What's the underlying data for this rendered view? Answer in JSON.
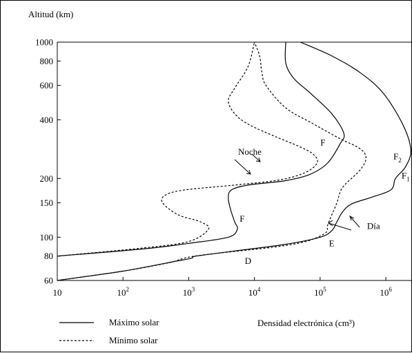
{
  "chart_data": {
    "type": "line",
    "ylabel": "Altitud (km)",
    "xlabel": "Densidad electrónica (cm³)",
    "x_scale": "log",
    "y_scale": "log",
    "xlim": [
      10,
      2500000
    ],
    "ylim": [
      60,
      1000
    ],
    "x_ticks": [
      {
        "value": 10,
        "base": "10",
        "exp": ""
      },
      {
        "value": 100,
        "base": "10",
        "exp": "2"
      },
      {
        "value": 1000,
        "base": "10",
        "exp": "3"
      },
      {
        "value": 10000,
        "base": "10",
        "exp": "4"
      },
      {
        "value": 100000,
        "base": "10",
        "exp": "5"
      },
      {
        "value": 1000000,
        "base": "10",
        "exp": "6"
      }
    ],
    "y_ticks": [
      {
        "value": 60,
        "label": "60"
      },
      {
        "value": 80,
        "label": "80"
      },
      {
        "value": 100,
        "label": "100"
      },
      {
        "value": 150,
        "label": "150"
      },
      {
        "value": 200,
        "label": "200"
      },
      {
        "value": 400,
        "label": "400"
      },
      {
        "value": 600,
        "label": "600"
      },
      {
        "value": 800,
        "label": "800"
      },
      {
        "value": 1000,
        "label": "1000"
      }
    ],
    "series": [
      {
        "name": "Máximo solar",
        "style": "solid",
        "points": [
          [
            10,
            60
          ],
          [
            100,
            67
          ],
          [
            600,
            75
          ],
          [
            1100,
            78
          ],
          [
            1300,
            80
          ],
          [
            5000,
            85
          ],
          [
            30000,
            92
          ],
          [
            100000,
            100
          ],
          [
            150000,
            108
          ],
          [
            180000,
            120
          ],
          [
            220000,
            135
          ],
          [
            300000,
            148
          ],
          [
            600000,
            160
          ],
          [
            1200000,
            175
          ],
          [
            1400000,
            200
          ],
          [
            2000000,
            230
          ],
          [
            2400000,
            280
          ],
          [
            1800000,
            380
          ],
          [
            900000,
            550
          ],
          [
            400000,
            700
          ],
          [
            150000,
            850
          ],
          [
            50000,
            1000
          ]
        ]
      },
      {
        "name": "Máximo solar",
        "style": "solid",
        "points": [
          [
            10,
            80
          ],
          [
            200,
            87
          ],
          [
            1000,
            93
          ],
          [
            4000,
            100
          ],
          [
            5500,
            110
          ],
          [
            5000,
            120
          ],
          [
            4300,
            140
          ],
          [
            4000,
            160
          ],
          [
            4500,
            175
          ],
          [
            8000,
            185
          ],
          [
            30000,
            195
          ],
          [
            70000,
            210
          ],
          [
            130000,
            240
          ],
          [
            200000,
            300
          ],
          [
            230000,
            340
          ],
          [
            150000,
            430
          ],
          [
            70000,
            550
          ],
          [
            40000,
            650
          ],
          [
            30000,
            780
          ],
          [
            30000,
            1000
          ]
        ]
      },
      {
        "name": "Mínimo solar",
        "style": "dashed",
        "points": [
          [
            10,
            60
          ],
          [
            100,
            67
          ],
          [
            500,
            74
          ],
          [
            1000,
            79
          ],
          [
            3000,
            83
          ],
          [
            20000,
            89
          ],
          [
            60000,
            95
          ],
          [
            120000,
            105
          ],
          [
            130000,
            115
          ],
          [
            150000,
            130
          ],
          [
            180000,
            150
          ],
          [
            220000,
            180
          ],
          [
            400000,
            220
          ],
          [
            500000,
            255
          ],
          [
            400000,
            285
          ],
          [
            200000,
            320
          ],
          [
            80000,
            380
          ],
          [
            30000,
            460
          ],
          [
            15000,
            600
          ],
          [
            13000,
            700
          ],
          [
            12000,
            850
          ],
          [
            10000,
            1000
          ]
        ]
      },
      {
        "name": "Mínimo solar",
        "style": "dashed",
        "points": [
          [
            10,
            80
          ],
          [
            200,
            88
          ],
          [
            1000,
            95
          ],
          [
            2000,
            110
          ],
          [
            1500,
            120
          ],
          [
            700,
            130
          ],
          [
            400,
            150
          ],
          [
            450,
            165
          ],
          [
            900,
            175
          ],
          [
            5000,
            185
          ],
          [
            25000,
            197
          ],
          [
            60000,
            215
          ],
          [
            90000,
            240
          ],
          [
            80000,
            265
          ],
          [
            50000,
            290
          ],
          [
            20000,
            330
          ],
          [
            8000,
            380
          ],
          [
            5000,
            430
          ],
          [
            4000,
            500
          ],
          [
            5000,
            580
          ],
          [
            8000,
            750
          ],
          [
            10000,
            1000
          ]
        ]
      }
    ],
    "annotations": [
      {
        "text": "Noche",
        "x": 8500,
        "y": 265
      },
      {
        "text": "F",
        "x": 110000,
        "y": 295
      },
      {
        "text": "F",
        "x": 1500000,
        "y": 250,
        "sub": "2"
      },
      {
        "text": "F",
        "x": 2000000,
        "y": 200,
        "sub": "1"
      },
      {
        "text": "F",
        "x": 6500,
        "y": 120
      },
      {
        "text": "Día",
        "x": 650000,
        "y": 110
      },
      {
        "text": "E",
        "x": 150000,
        "y": 90
      },
      {
        "text": "D",
        "x": 8000,
        "y": 73
      }
    ],
    "legend": {
      "position": "bottom-left",
      "entries": [
        {
          "label": "Máximo solar",
          "style": "solid"
        },
        {
          "label": "Mínimo solar",
          "style": "dashed"
        }
      ]
    },
    "grid": false
  }
}
